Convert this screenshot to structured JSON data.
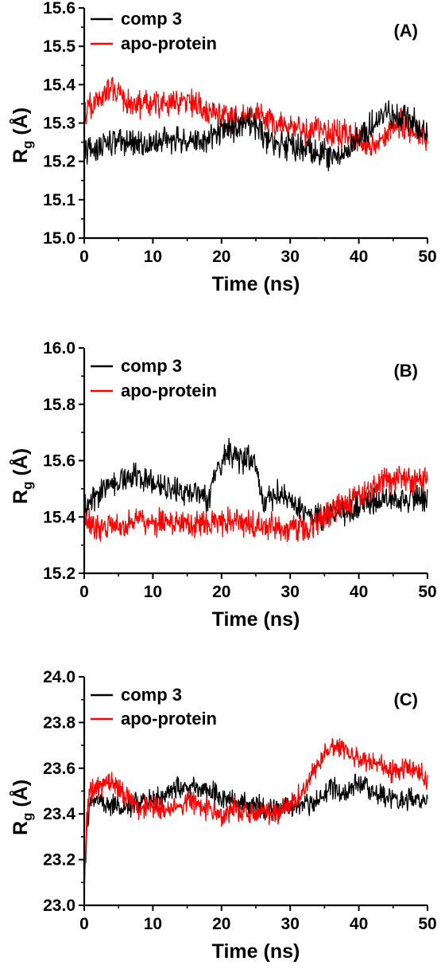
{
  "chart_data": [
    {
      "type": "line",
      "panel_label": "(A)",
      "xlabel": "Time (ns)",
      "ylabel_main": "R",
      "ylabel_sub": "g",
      "ylabel_unit": "(Å)",
      "xlim": [
        0,
        50
      ],
      "ylim": [
        15.0,
        15.6
      ],
      "xticks": [
        0,
        10,
        20,
        30,
        40,
        50
      ],
      "yticks": [
        15.0,
        15.1,
        15.2,
        15.3,
        15.4,
        15.5,
        15.6
      ],
      "ytick_labels": [
        "15.0",
        "15.1",
        "15.2",
        "15.3",
        "15.4",
        "15.5",
        "15.6"
      ],
      "legend_position": "top-left",
      "grid": false,
      "series": [
        {
          "name": "comp 3",
          "color": "#000000",
          "x": [
            0,
            2,
            4,
            6,
            8,
            10,
            12,
            14,
            16,
            18,
            20,
            22,
            24,
            26,
            28,
            30,
            32,
            34,
            36,
            38,
            40,
            42,
            44,
            46,
            48,
            50
          ],
          "values": [
            15.22,
            15.24,
            15.25,
            15.25,
            15.24,
            15.25,
            15.26,
            15.26,
            15.25,
            15.26,
            15.28,
            15.29,
            15.3,
            15.27,
            15.24,
            15.24,
            15.23,
            15.23,
            15.21,
            15.22,
            15.26,
            15.3,
            15.33,
            15.31,
            15.3,
            15.28
          ]
        },
        {
          "name": "apo-protein",
          "color": "#ff0000",
          "x": [
            0,
            2,
            4,
            6,
            8,
            10,
            12,
            14,
            16,
            18,
            20,
            22,
            24,
            26,
            28,
            30,
            32,
            34,
            36,
            38,
            40,
            42,
            44,
            46,
            48,
            50
          ],
          "values": [
            15.33,
            15.36,
            15.39,
            15.36,
            15.35,
            15.35,
            15.35,
            15.36,
            15.35,
            15.33,
            15.32,
            15.31,
            15.32,
            15.31,
            15.3,
            15.29,
            15.28,
            15.28,
            15.27,
            15.27,
            15.26,
            15.24,
            15.28,
            15.3,
            15.28,
            15.26
          ]
        }
      ]
    },
    {
      "type": "line",
      "panel_label": "(B)",
      "xlabel": "Time (ns)",
      "ylabel_main": "R",
      "ylabel_sub": "g",
      "ylabel_unit": "(Å)",
      "xlim": [
        0,
        50
      ],
      "ylim": [
        15.2,
        16.0
      ],
      "xticks": [
        0,
        10,
        20,
        30,
        40,
        50
      ],
      "yticks": [
        15.2,
        15.4,
        15.6,
        15.8,
        16.0
      ],
      "ytick_labels": [
        "15.2",
        "15.4",
        "15.6",
        "15.8",
        "16.0"
      ],
      "legend_position": "top-left",
      "grid": false,
      "series": [
        {
          "name": "comp 3",
          "color": "#000000",
          "x": [
            0,
            2,
            4,
            6,
            8,
            10,
            12,
            14,
            16,
            18,
            19,
            20,
            21,
            22,
            23,
            24,
            25,
            26,
            28,
            30,
            32,
            34,
            36,
            38,
            40,
            42,
            44,
            46,
            48,
            50
          ],
          "values": [
            15.43,
            15.48,
            15.52,
            15.54,
            15.55,
            15.52,
            15.5,
            15.49,
            15.48,
            15.46,
            15.55,
            15.6,
            15.64,
            15.6,
            15.6,
            15.62,
            15.58,
            15.45,
            15.48,
            15.47,
            15.42,
            15.4,
            15.41,
            15.42,
            15.44,
            15.45,
            15.47,
            15.46,
            15.46,
            15.48
          ]
        },
        {
          "name": "apo-protein",
          "color": "#ff0000",
          "x": [
            0,
            2,
            4,
            6,
            8,
            10,
            12,
            14,
            16,
            18,
            20,
            22,
            24,
            26,
            28,
            30,
            32,
            34,
            36,
            38,
            40,
            42,
            44,
            46,
            48,
            50
          ],
          "values": [
            15.4,
            15.36,
            15.37,
            15.38,
            15.39,
            15.38,
            15.39,
            15.38,
            15.37,
            15.38,
            15.38,
            15.39,
            15.37,
            15.37,
            15.36,
            15.36,
            15.36,
            15.38,
            15.42,
            15.45,
            15.48,
            15.5,
            15.53,
            15.54,
            15.53,
            15.55
          ]
        }
      ]
    },
    {
      "type": "line",
      "panel_label": "(C)",
      "xlabel": "Time (ns)",
      "ylabel_main": "R",
      "ylabel_sub": "g",
      "ylabel_unit": "(Å)",
      "xlim": [
        0,
        50
      ],
      "ylim": [
        23.0,
        24.0
      ],
      "xticks": [
        0,
        10,
        20,
        30,
        40,
        50
      ],
      "yticks": [
        23.0,
        23.2,
        23.4,
        23.6,
        23.8,
        24.0
      ],
      "ytick_labels": [
        "23.0",
        "23.2",
        "23.4",
        "23.6",
        "23.8",
        "24.0"
      ],
      "legend_position": "top-left",
      "grid": false,
      "series": [
        {
          "name": "comp 3",
          "color": "#000000",
          "x": [
            0,
            0.3,
            0.6,
            1,
            2,
            4,
            6,
            8,
            10,
            12,
            14,
            16,
            18,
            20,
            22,
            24,
            26,
            28,
            30,
            32,
            34,
            36,
            38,
            40,
            42,
            44,
            46,
            48,
            50
          ],
          "values": [
            23.1,
            23.3,
            23.4,
            23.45,
            23.45,
            23.44,
            23.42,
            23.44,
            23.46,
            23.49,
            23.52,
            23.52,
            23.5,
            23.47,
            23.45,
            23.44,
            23.43,
            23.42,
            23.43,
            23.44,
            23.46,
            23.52,
            23.48,
            23.55,
            23.5,
            23.47,
            23.46,
            23.46,
            23.45
          ]
        },
        {
          "name": "apo-protein",
          "color": "#ff0000",
          "x": [
            0,
            0.3,
            0.6,
            1,
            2,
            4,
            6,
            8,
            10,
            12,
            14,
            16,
            18,
            20,
            22,
            24,
            26,
            28,
            30,
            32,
            34,
            36,
            38,
            40,
            42,
            44,
            46,
            48,
            50
          ],
          "values": [
            23.05,
            23.35,
            23.45,
            23.5,
            23.52,
            23.55,
            23.48,
            23.42,
            23.44,
            23.42,
            23.44,
            23.45,
            23.42,
            23.4,
            23.42,
            23.41,
            23.4,
            23.4,
            23.44,
            23.5,
            23.62,
            23.7,
            23.68,
            23.64,
            23.63,
            23.6,
            23.58,
            23.6,
            23.55
          ]
        }
      ]
    }
  ]
}
